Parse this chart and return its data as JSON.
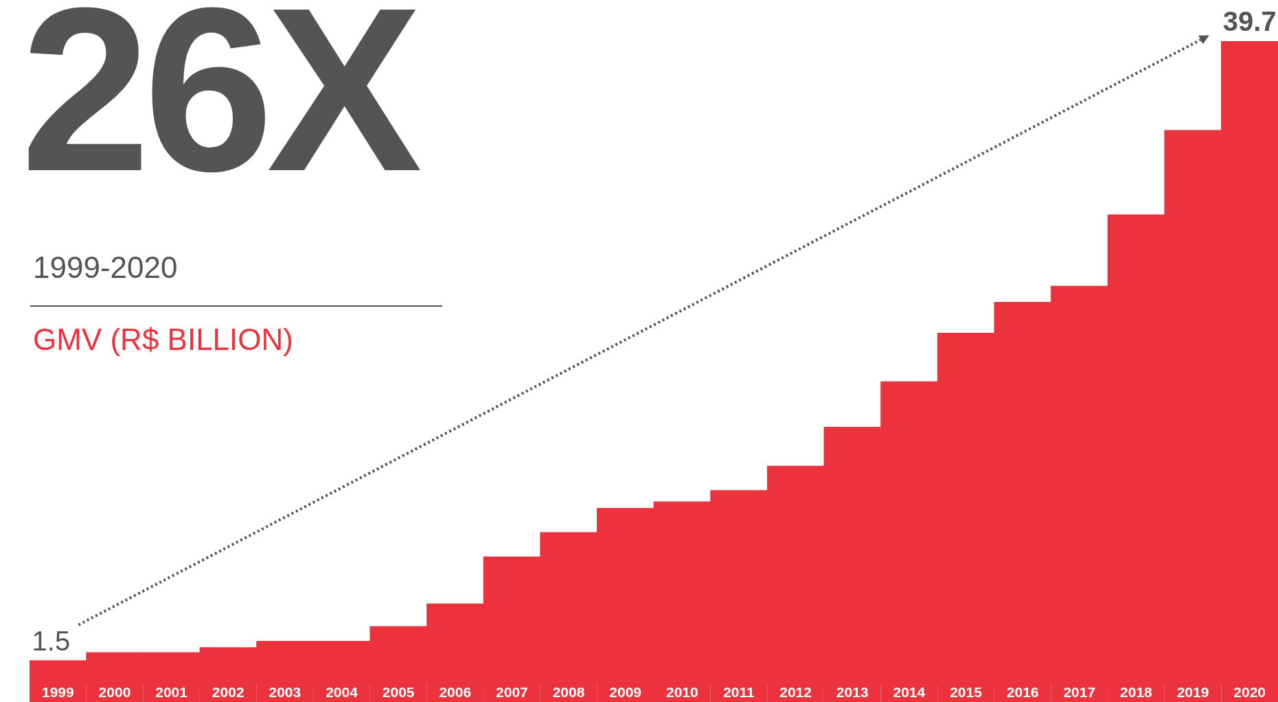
{
  "chart_data": {
    "type": "bar",
    "title": "26X",
    "subtitle": "1999-2020",
    "ylabel": "GMV (R$ BILLION)",
    "categories": [
      "1999",
      "2000",
      "2001",
      "2002",
      "2003",
      "2004",
      "2005",
      "2006",
      "2007",
      "2008",
      "2009",
      "2010",
      "2011",
      "2012",
      "2013",
      "2014",
      "2015",
      "2016",
      "2017",
      "2018",
      "2019",
      "2020"
    ],
    "values": [
      1.5,
      2.0,
      2.0,
      2.3,
      2.7,
      2.7,
      3.6,
      5.0,
      7.9,
      9.4,
      10.9,
      11.3,
      12.0,
      13.5,
      15.9,
      18.7,
      21.7,
      23.6,
      24.6,
      29.0,
      34.2,
      39.7
    ],
    "value_labels": [
      "1.5",
      null,
      null,
      null,
      null,
      null,
      null,
      null,
      null,
      null,
      null,
      null,
      null,
      null,
      null,
      null,
      null,
      null,
      null,
      null,
      null,
      "39.7"
    ],
    "color": "#ec333d",
    "legend": false
  }
}
